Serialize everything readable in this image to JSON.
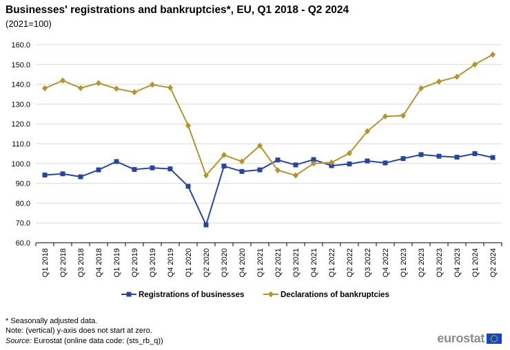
{
  "title": "Businesses' registrations and bankruptcies*, EU, Q1 2018 - Q2 2024",
  "subtitle": "(2021=100)",
  "chart_data": {
    "type": "line",
    "title": "Businesses' registrations and bankruptcies*, EU, Q1 2018 - Q2 2024",
    "subtitle": "(2021=100)",
    "xlabel": "",
    "ylabel": "",
    "ylim": [
      60,
      160
    ],
    "yticks": [
      "60.0",
      "70.0",
      "80.0",
      "90.0",
      "100.0",
      "110.0",
      "120.0",
      "130.0",
      "140.0",
      "150.0",
      "160.0"
    ],
    "grid": true,
    "legend_position": "bottom",
    "categories": [
      "Q1 2018",
      "Q2 2018",
      "Q3 2018",
      "Q4 2018",
      "Q1 2019",
      "Q2 2019",
      "Q3 2019",
      "Q4 2019",
      "Q1 2020",
      "Q2 2020",
      "Q3 2020",
      "Q4 2020",
      "Q1 2021",
      "Q2 2021",
      "Q3 2021",
      "Q4 2021",
      "Q1 2022",
      "Q2 2022",
      "Q3 2022",
      "Q4 2022",
      "Q1 2023",
      "Q2 2023",
      "Q3 2023",
      "Q4 2023",
      "Q1 2024",
      "Q2 2024"
    ],
    "series": [
      {
        "name": "Registrations of businesses",
        "color": "#2644a6",
        "marker": "square",
        "values": [
          94.2,
          94.8,
          93.3,
          96.8,
          101.0,
          97.0,
          97.8,
          97.3,
          88.5,
          69.0,
          98.7,
          96.0,
          96.8,
          101.8,
          99.3,
          102.0,
          98.9,
          99.8,
          101.3,
          100.3,
          102.5,
          104.5,
          103.7,
          103.2,
          105.0,
          103.0
        ]
      },
      {
        "name": "Declarations of bankruptcies",
        "color": "#b5932c",
        "marker": "diamond",
        "values": [
          138.0,
          141.9,
          138.1,
          140.6,
          137.8,
          136.0,
          139.8,
          138.3,
          119.2,
          94.0,
          104.3,
          101.0,
          109.0,
          96.6,
          94.0,
          100.0,
          100.5,
          105.2,
          116.3,
          123.8,
          124.2,
          138.0,
          141.4,
          143.8,
          150.0,
          155.0
        ]
      }
    ]
  },
  "notes": {
    "seasonal": "* Seasonally adjusted data.",
    "axis": "Note: (vertical) y-axis does not start at zero.",
    "source_label": "Source:",
    "source_text": " Eurostat (online data code: (sts_rb_q))"
  },
  "logo": {
    "text": "eurostat",
    "flag_color": "#0e47cb",
    "star_color": "#ffdd00"
  }
}
